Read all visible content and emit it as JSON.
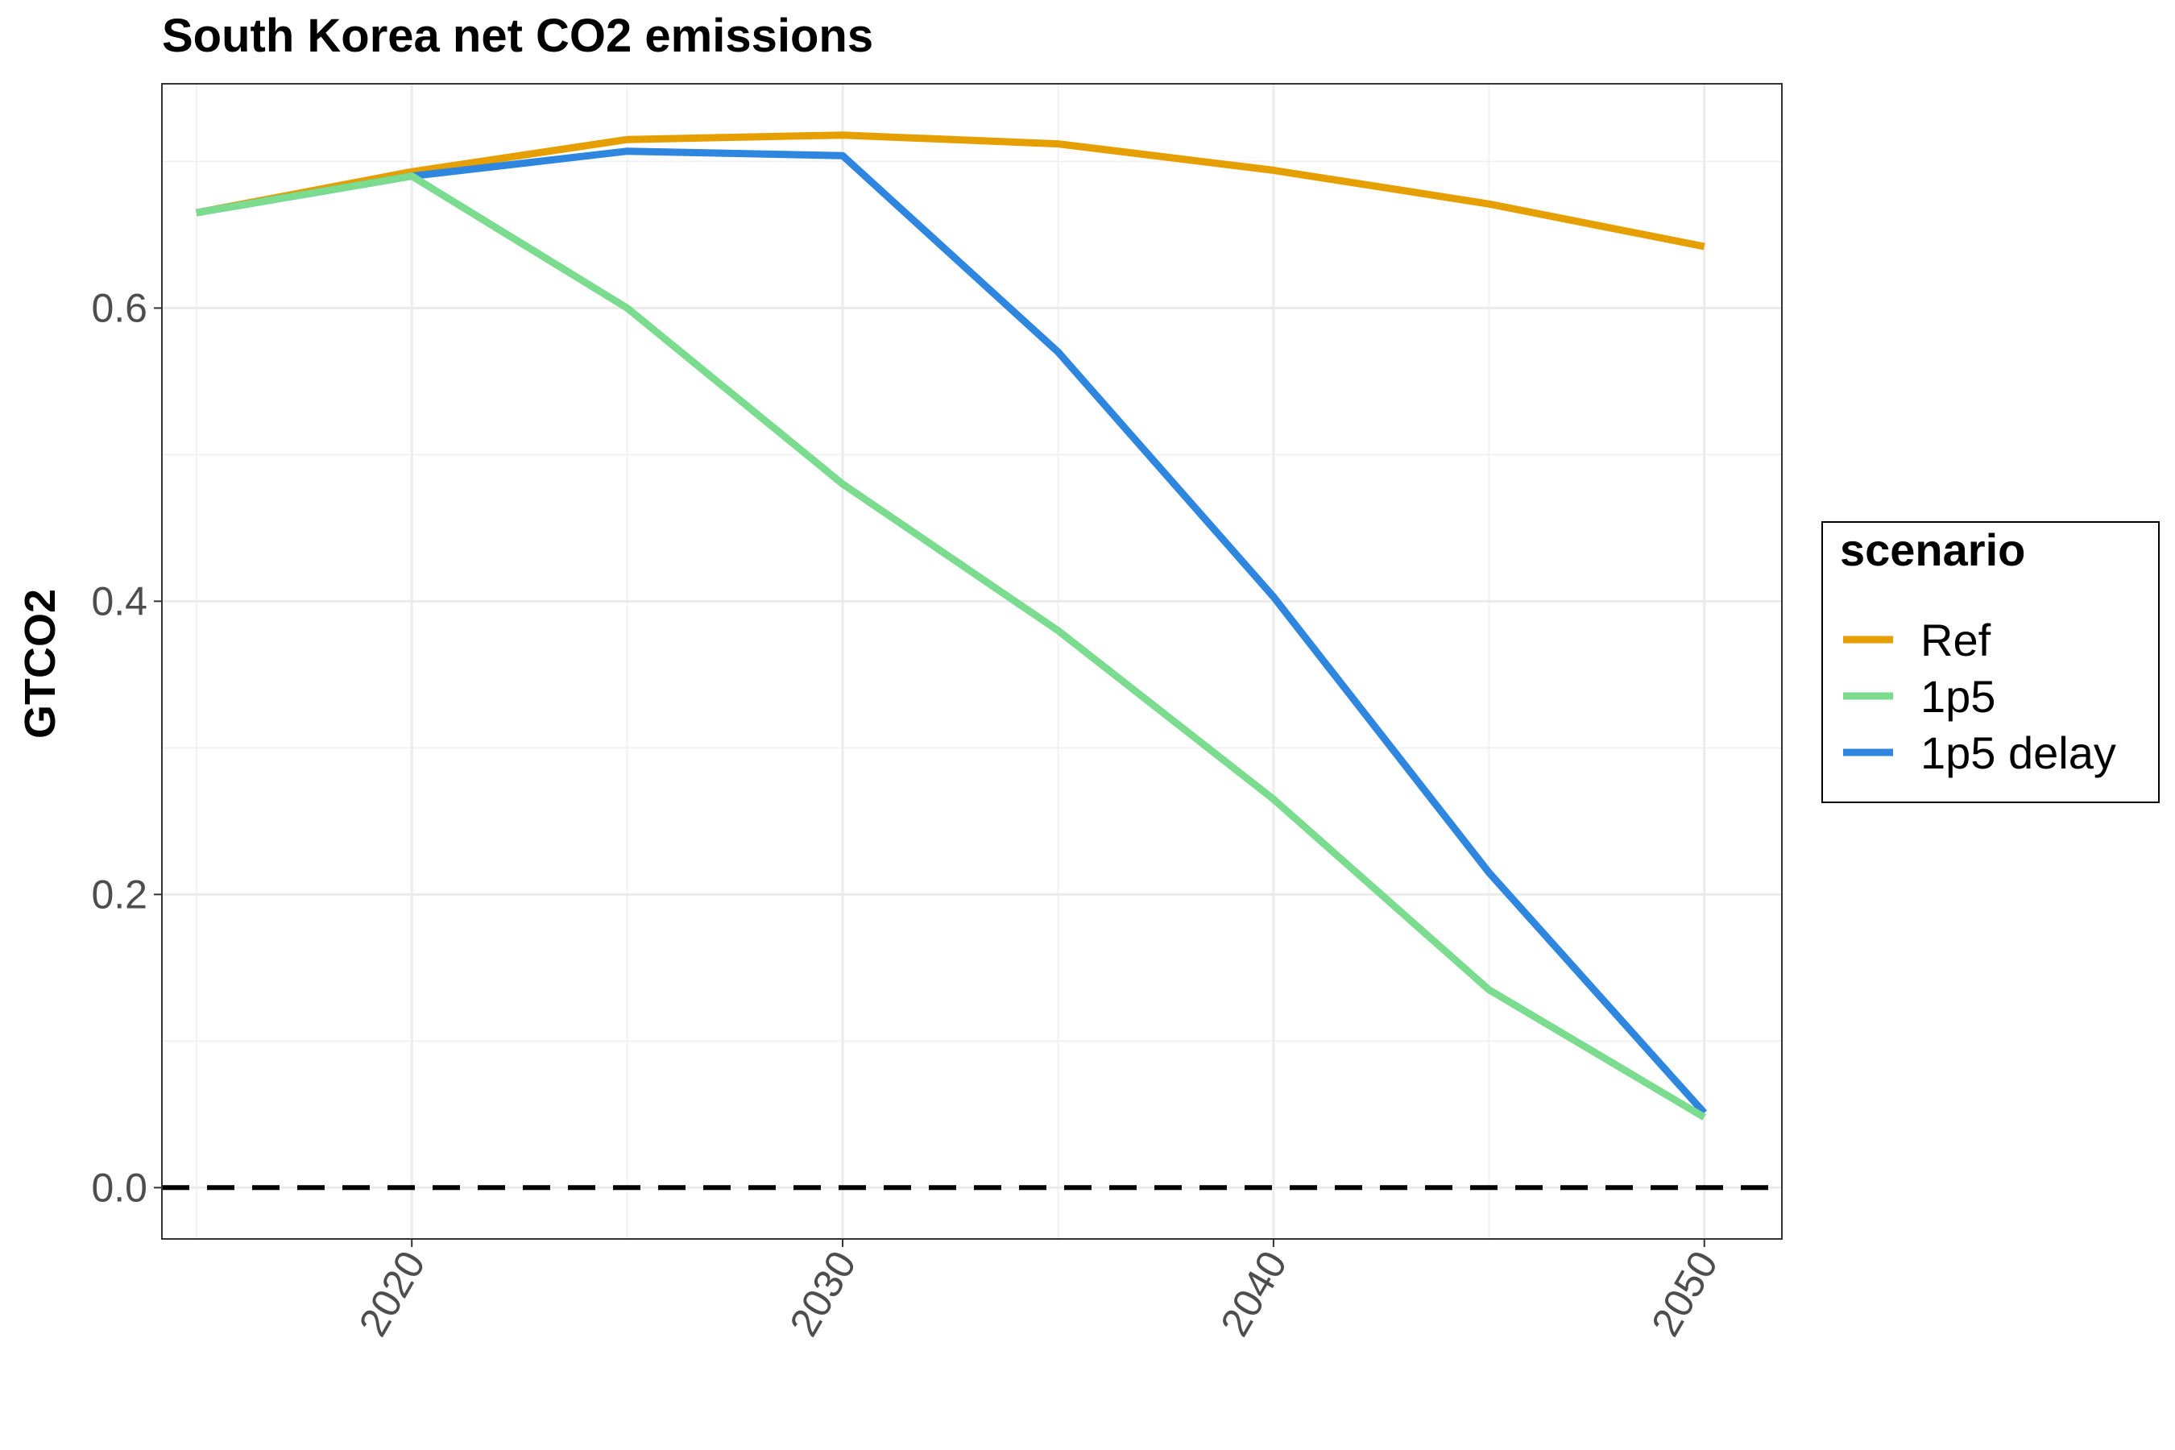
{
  "chart_data": {
    "type": "line",
    "title": "South Korea net CO2 emissions",
    "xlabel": "",
    "ylabel": "GTCO2",
    "xlim": [
      2014.2,
      2051.8
    ],
    "ylim": [
      -0.035,
      0.753
    ],
    "x_ticks": [
      2020,
      2030,
      2040,
      2050
    ],
    "y_ticks": [
      0.0,
      0.2,
      0.4,
      0.6
    ],
    "y_tick_labels": [
      "0.0",
      "0.2",
      "0.4",
      "0.6"
    ],
    "grid": true,
    "reference_line": {
      "y": 0,
      "style": "dashed",
      "color": "#000000"
    },
    "legend": {
      "title": "scenario",
      "position": "right"
    },
    "series": [
      {
        "name": "Ref",
        "color": "#e69f00",
        "x": [
          2015,
          2020,
          2025,
          2030,
          2035,
          2040,
          2045,
          2050
        ],
        "y": [
          0.665,
          0.693,
          0.715,
          0.718,
          0.712,
          0.694,
          0.671,
          0.642
        ]
      },
      {
        "name": "1p5",
        "color": "#7bdb8e",
        "x": [
          2015,
          2020,
          2025,
          2030,
          2035,
          2040,
          2045,
          2050
        ],
        "y": [
          0.665,
          0.69,
          0.6,
          0.48,
          0.38,
          0.265,
          0.135,
          0.048
        ]
      },
      {
        "name": "1p5 delay",
        "color": "#2f86de",
        "x": [
          2015,
          2020,
          2025,
          2030,
          2035,
          2040,
          2045,
          2050
        ],
        "y": [
          0.665,
          0.69,
          0.707,
          0.704,
          0.57,
          0.403,
          0.215,
          0.051
        ]
      }
    ]
  }
}
